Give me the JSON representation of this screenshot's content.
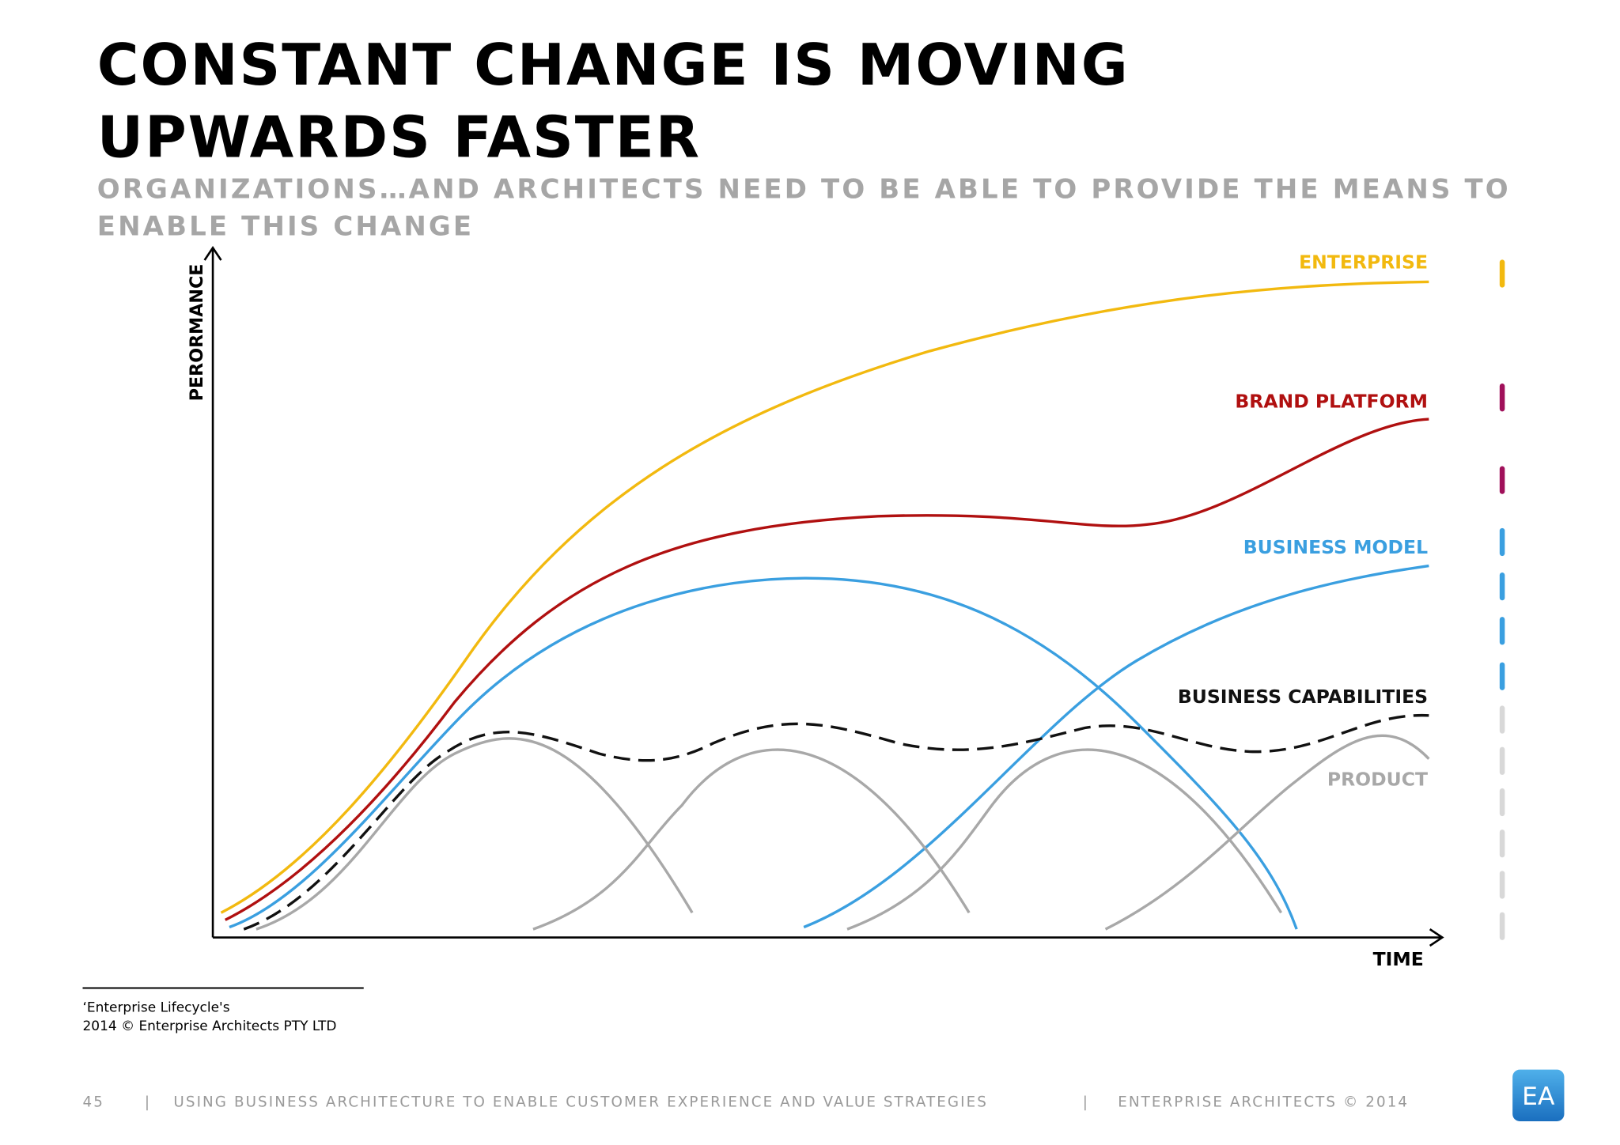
{
  "header": {
    "title": "CONSTANT CHANGE IS MOVING UPWARDS FASTER",
    "subtitle": "ORGANIZATIONS…AND ARCHITECTS NEED TO BE ABLE TO PROVIDE THE MEANS TO ENABLE THIS CHANGE"
  },
  "diagram": {
    "y_axis_label": "PERORMANCE",
    "x_axis_label": "TIME",
    "curves": {
      "enterprise": "ENTERPRISE",
      "brand_platform": "BRAND PLATFORM",
      "business_model": "BUSINESS MODEL",
      "business_capabilities": "BUSINESS CAPABILITIES",
      "product": "PRODUCT"
    }
  },
  "footnote": {
    "line1": "‘Enterprise Lifecycle's",
    "line2": "2014 © Enterprise Architects PTY LTD"
  },
  "footer": {
    "page_number": "45",
    "separator": "|",
    "presentation": "USING BUSINESS ARCHITECTURE TO ENABLE CUSTOMER EXPERIENCE AND VALUE STRATEGIES",
    "copyright": "ENTERPRISE ARCHITECTS © 2014",
    "logo": "EA"
  }
}
